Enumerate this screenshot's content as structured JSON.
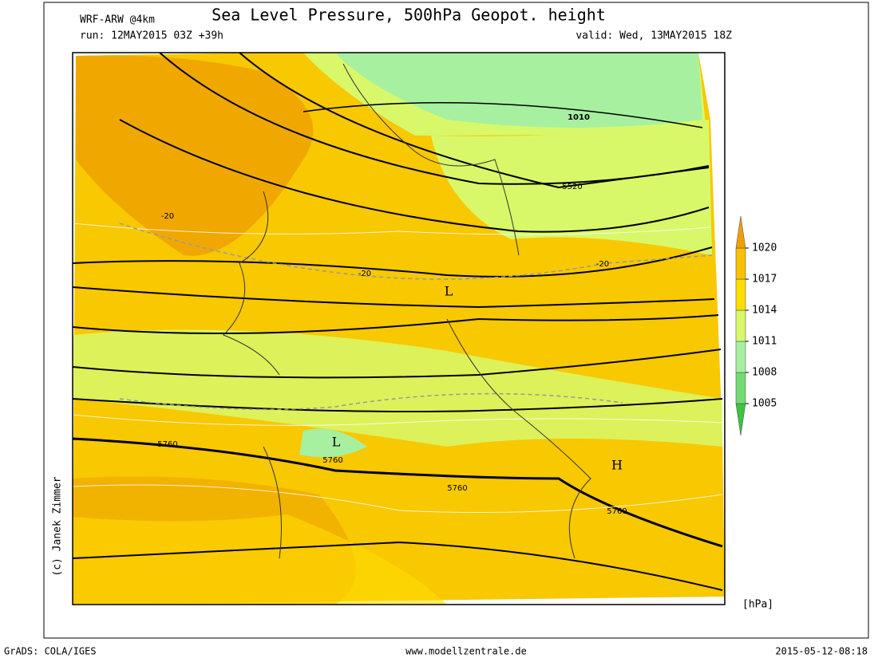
{
  "header": {
    "model": "WRF-ARW @4km",
    "title": "Sea Level Pressure, 500hPa Geopot. height",
    "run": "run: 12MAY2015 03Z +39h",
    "valid": "valid: Wed, 13MAY2015 18Z"
  },
  "credit": "(c) Janek Zimmer",
  "map": {
    "labels": [
      "1010",
      "5520",
      "-20",
      "-20",
      "-20",
      "5760",
      "5760",
      "5760",
      "5760",
      "L",
      "L",
      "H"
    ]
  },
  "colorbar": {
    "levels": [
      1005,
      1008,
      1011,
      1014,
      1017,
      1020
    ],
    "colors": [
      "#3ec43e",
      "#72dc72",
      "#a6f0a0",
      "#d8f86a",
      "#ffdc00",
      "#f8c000",
      "#f0a000"
    ],
    "unit": "[hPa]"
  },
  "footer": {
    "left": "GrADS: COLA/IGES",
    "center": "www.modellzentrale.de",
    "right": "2015-05-12-08:18"
  }
}
